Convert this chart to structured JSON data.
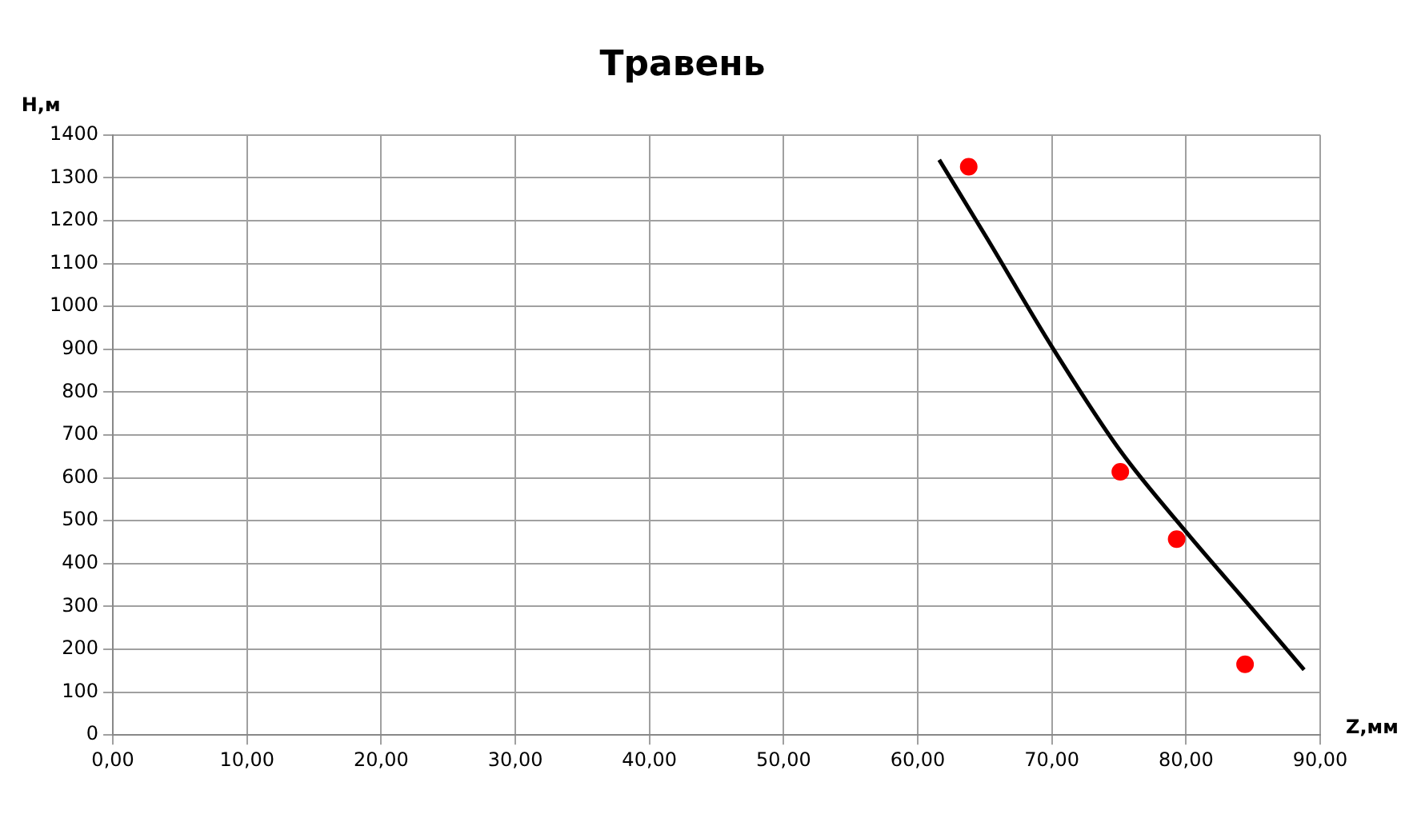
{
  "chart_data": {
    "type": "scatter",
    "title": "Травень",
    "xlabel": "Z,мм",
    "ylabel": "H,м",
    "series": [
      {
        "type": "scatter",
        "color": "#ff0000",
        "x": [
          63.8,
          75.1,
          79.3,
          84.4
        ],
        "values": [
          1326,
          614,
          457,
          165
        ],
        "marker": "circle"
      },
      {
        "type": "line",
        "color": "#000000",
        "x": [
          61.6,
          65.2,
          70,
          75.1,
          80,
          85,
          88.8
        ],
        "values": [
          1342,
          1157,
          906,
          663,
          474,
          292,
          152
        ],
        "marker": "none"
      }
    ],
    "xlim": [
      0,
      90
    ],
    "xticks": [
      {
        "value": 0,
        "label": "0,00"
      },
      {
        "value": 10,
        "label": "10,00"
      },
      {
        "value": 20,
        "label": "20,00"
      },
      {
        "value": 30,
        "label": "30,00"
      },
      {
        "value": 40,
        "label": "40,00"
      },
      {
        "value": 50,
        "label": "50,00"
      },
      {
        "value": 60,
        "label": "60,00"
      },
      {
        "value": 70,
        "label": "70,00"
      },
      {
        "value": 80,
        "label": "80,00"
      },
      {
        "value": 90,
        "label": "90,00"
      }
    ],
    "ylim": [
      0,
      1400
    ],
    "yticks": [
      0,
      100,
      200,
      300,
      400,
      500,
      600,
      700,
      800,
      900,
      1000,
      1100,
      1200,
      1300,
      1400
    ],
    "grid": true,
    "legend": false
  }
}
